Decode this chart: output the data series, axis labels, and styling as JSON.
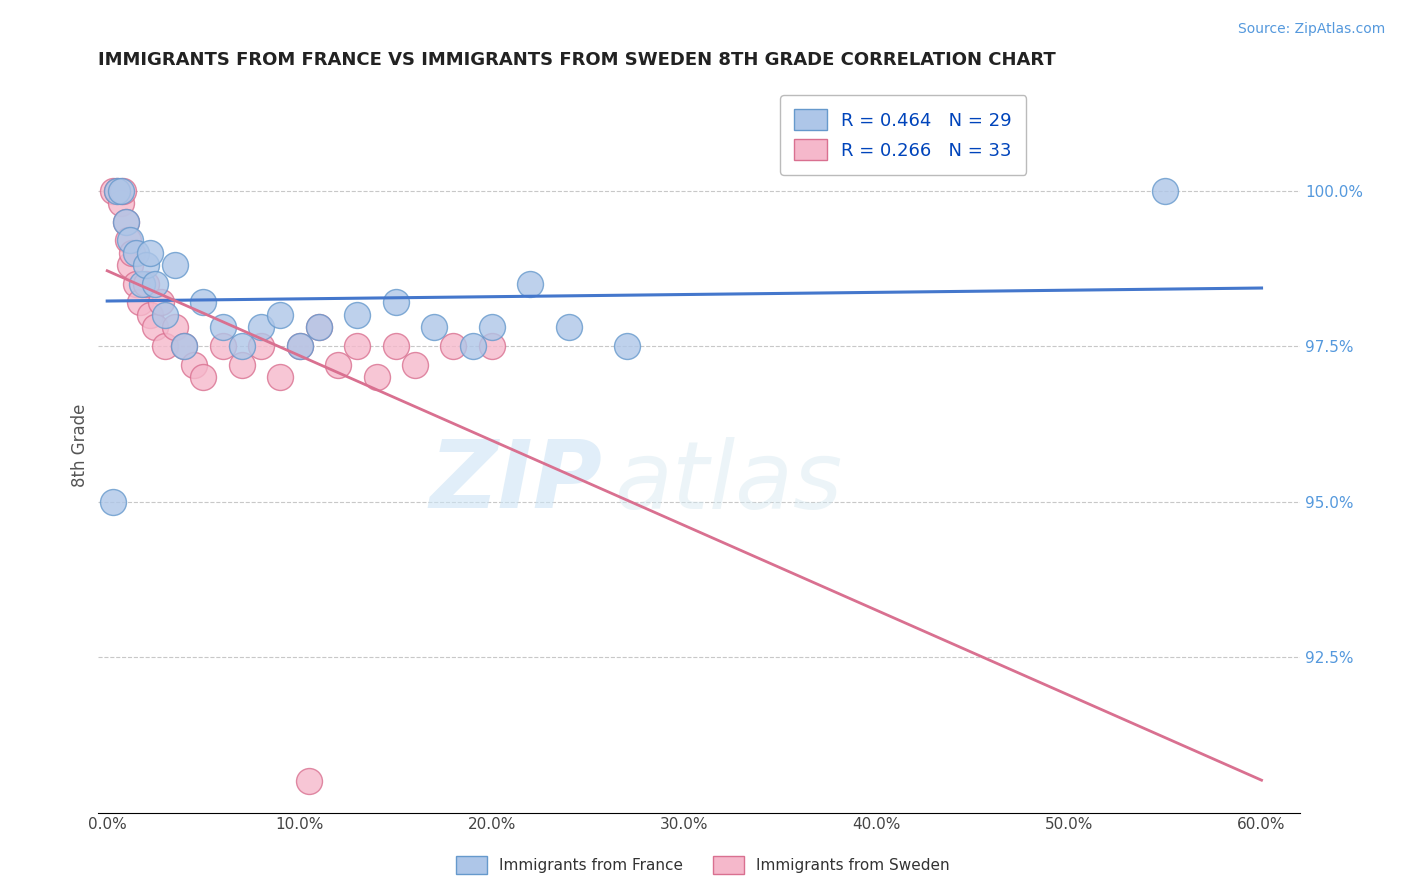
{
  "title": "IMMIGRANTS FROM FRANCE VS IMMIGRANTS FROM SWEDEN 8TH GRADE CORRELATION CHART",
  "source": "Source: ZipAtlas.com",
  "xlabel_vals": [
    0.0,
    10.0,
    20.0,
    30.0,
    40.0,
    50.0,
    60.0
  ],
  "ylabel_vals": [
    92.5,
    95.0,
    97.5,
    100.0
  ],
  "xlim": [
    -0.5,
    62.0
  ],
  "ylim": [
    90.0,
    101.8
  ],
  "ylabel_label": "8th Grade",
  "france_color": "#aec6e8",
  "sweden_color": "#f5b8cb",
  "france_edge": "#6699cc",
  "sweden_edge": "#d97090",
  "france_line_color": "#4477cc",
  "sweden_line_color": "#d97090",
  "legend_france_R": "R = 0.464",
  "legend_france_N": "N = 29",
  "legend_sweden_R": "R = 0.266",
  "legend_sweden_N": "N = 33",
  "france_x": [
    0.5,
    0.7,
    1.0,
    1.2,
    1.5,
    1.8,
    2.0,
    2.2,
    2.5,
    3.0,
    3.5,
    4.0,
    5.0,
    6.0,
    7.0,
    8.0,
    9.0,
    10.0,
    11.0,
    13.0,
    15.0,
    17.0,
    19.0,
    20.0,
    22.0,
    24.0,
    27.0,
    55.0,
    0.3
  ],
  "france_y": [
    100.0,
    100.0,
    99.5,
    99.2,
    99.0,
    98.5,
    98.8,
    99.0,
    98.5,
    98.0,
    98.8,
    97.5,
    98.2,
    97.8,
    97.5,
    97.8,
    98.0,
    97.5,
    97.8,
    98.0,
    98.2,
    97.8,
    97.5,
    97.8,
    98.5,
    97.8,
    97.5,
    100.0,
    95.0
  ],
  "sweden_x": [
    0.3,
    0.5,
    0.7,
    0.8,
    1.0,
    1.1,
    1.2,
    1.3,
    1.5,
    1.7,
    2.0,
    2.2,
    2.5,
    2.8,
    3.0,
    3.5,
    4.0,
    4.5,
    5.0,
    6.0,
    7.0,
    8.0,
    9.0,
    10.0,
    11.0,
    12.0,
    13.0,
    14.0,
    15.0,
    16.0,
    18.0,
    20.0,
    10.5
  ],
  "sweden_y": [
    100.0,
    100.0,
    99.8,
    100.0,
    99.5,
    99.2,
    98.8,
    99.0,
    98.5,
    98.2,
    98.5,
    98.0,
    97.8,
    98.2,
    97.5,
    97.8,
    97.5,
    97.2,
    97.0,
    97.5,
    97.2,
    97.5,
    97.0,
    97.5,
    97.8,
    97.2,
    97.5,
    97.0,
    97.5,
    97.2,
    97.5,
    97.5,
    90.5
  ],
  "watermark_zip": "ZIP",
  "watermark_atlas": "atlas",
  "background_color": "#ffffff",
  "grid_color": "#c8c8c8"
}
